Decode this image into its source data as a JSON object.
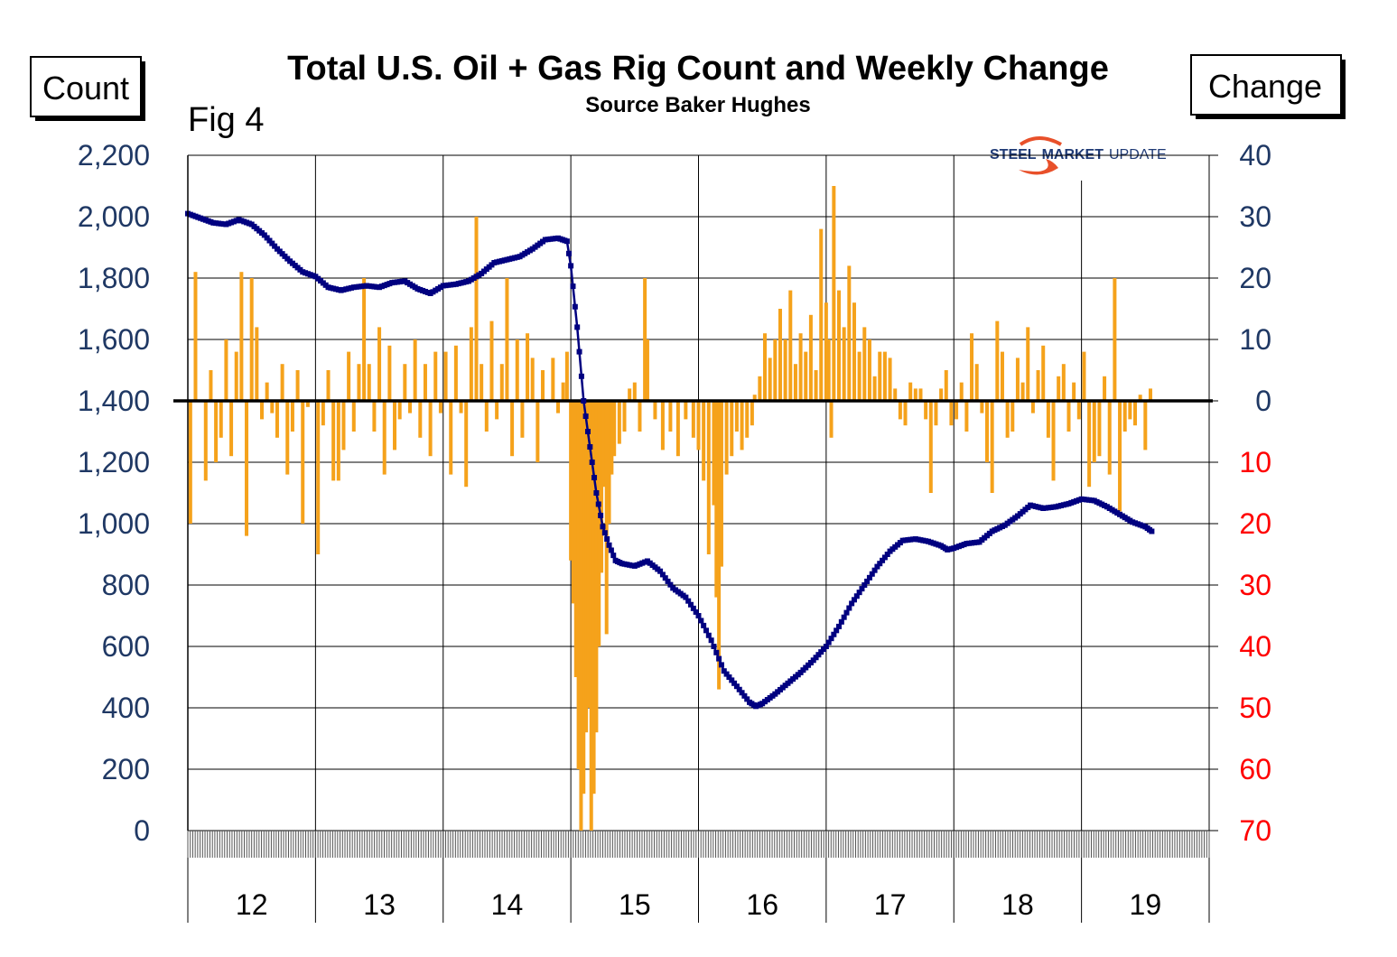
{
  "title": "Total U.S. Oil + Gas Rig Count and Weekly Change",
  "subtitle": "Source Baker Hughes",
  "figure_label": "Fig 4",
  "left_axis_box": "Count",
  "right_axis_box": "Change",
  "logo": {
    "word1": "STEEL",
    "word2": "MARKET",
    "word3": "UPDATE"
  },
  "colors": {
    "count_line": "#000080",
    "change_bars": "#f5a21b",
    "left_ticks": "#1f3864",
    "right_ticks_positive": "#1f3864",
    "right_ticks_negative": "#ff0000",
    "zero_line": "#000000",
    "logo_swoosh": "#e8502a"
  },
  "chart_data": {
    "type": "line+bar",
    "x_tick_labels": [
      "12",
      "13",
      "14",
      "15",
      "16",
      "17",
      "18",
      "19"
    ],
    "left_axis": {
      "ylim": [
        0,
        2200
      ],
      "ticks": [
        0,
        200,
        400,
        600,
        800,
        1000,
        1200,
        1400,
        1600,
        1800,
        2000,
        2200
      ],
      "tick_labels": [
        "0",
        "200",
        "400",
        "600",
        "800",
        "1,000",
        "1,200",
        "1,400",
        "1,600",
        "1,800",
        "2,000",
        "2,200"
      ]
    },
    "right_axis": {
      "ylim": [
        -70,
        40
      ],
      "ticks": [
        -70,
        -60,
        -50,
        -40,
        -30,
        -20,
        -10,
        0,
        10,
        20,
        30,
        40
      ],
      "tick_labels": [
        "70",
        "60",
        "50",
        "40",
        "30",
        "20",
        "10",
        "0",
        "10",
        "20",
        "30",
        "40"
      ]
    },
    "grid": true,
    "series": [
      {
        "name": "",
        "kind": "line",
        "axis": "left",
        "points": [
          [
            2012.0,
            2010
          ],
          [
            2012.1,
            1995
          ],
          [
            2012.2,
            1980
          ],
          [
            2012.3,
            1975
          ],
          [
            2012.4,
            1990
          ],
          [
            2012.5,
            1975
          ],
          [
            2012.6,
            1940
          ],
          [
            2012.7,
            1895
          ],
          [
            2012.8,
            1855
          ],
          [
            2012.9,
            1820
          ],
          [
            2013.0,
            1805
          ],
          [
            2013.1,
            1770
          ],
          [
            2013.2,
            1760
          ],
          [
            2013.3,
            1770
          ],
          [
            2013.4,
            1775
          ],
          [
            2013.5,
            1770
          ],
          [
            2013.6,
            1785
          ],
          [
            2013.7,
            1790
          ],
          [
            2013.8,
            1765
          ],
          [
            2013.9,
            1750
          ],
          [
            2014.0,
            1775
          ],
          [
            2014.1,
            1780
          ],
          [
            2014.2,
            1790
          ],
          [
            2014.3,
            1815
          ],
          [
            2014.4,
            1850
          ],
          [
            2014.5,
            1860
          ],
          [
            2014.6,
            1870
          ],
          [
            2014.7,
            1895
          ],
          [
            2014.8,
            1925
          ],
          [
            2014.9,
            1930
          ],
          [
            2014.97,
            1920
          ],
          [
            2015.0,
            1840
          ],
          [
            2015.05,
            1640
          ],
          [
            2015.1,
            1400
          ],
          [
            2015.15,
            1250
          ],
          [
            2015.2,
            1100
          ],
          [
            2015.25,
            990
          ],
          [
            2015.3,
            930
          ],
          [
            2015.35,
            880
          ],
          [
            2015.4,
            870
          ],
          [
            2015.5,
            862
          ],
          [
            2015.6,
            878
          ],
          [
            2015.7,
            845
          ],
          [
            2015.8,
            790
          ],
          [
            2015.9,
            760
          ],
          [
            2016.0,
            700
          ],
          [
            2016.1,
            620
          ],
          [
            2016.2,
            520
          ],
          [
            2016.3,
            470
          ],
          [
            2016.4,
            418
          ],
          [
            2016.45,
            405
          ],
          [
            2016.5,
            414
          ],
          [
            2016.6,
            445
          ],
          [
            2016.7,
            480
          ],
          [
            2016.8,
            515
          ],
          [
            2016.9,
            555
          ],
          [
            2017.0,
            600
          ],
          [
            2017.1,
            665
          ],
          [
            2017.2,
            740
          ],
          [
            2017.3,
            800
          ],
          [
            2017.4,
            860
          ],
          [
            2017.5,
            910
          ],
          [
            2017.6,
            945
          ],
          [
            2017.7,
            950
          ],
          [
            2017.8,
            942
          ],
          [
            2017.9,
            928
          ],
          [
            2017.95,
            915
          ],
          [
            2018.0,
            920
          ],
          [
            2018.1,
            935
          ],
          [
            2018.2,
            940
          ],
          [
            2018.3,
            975
          ],
          [
            2018.4,
            995
          ],
          [
            2018.5,
            1025
          ],
          [
            2018.6,
            1060
          ],
          [
            2018.7,
            1050
          ],
          [
            2018.8,
            1055
          ],
          [
            2018.9,
            1065
          ],
          [
            2019.0,
            1080
          ],
          [
            2019.1,
            1075
          ],
          [
            2019.2,
            1055
          ],
          [
            2019.3,
            1030
          ],
          [
            2019.4,
            1005
          ],
          [
            2019.5,
            990
          ],
          [
            2019.55,
            975
          ]
        ]
      },
      {
        "name": "",
        "kind": "bar",
        "axis": "right",
        "points": [
          [
            2012.02,
            -20
          ],
          [
            2012.06,
            21
          ],
          [
            2012.1,
            0
          ],
          [
            2012.14,
            -13
          ],
          [
            2012.18,
            5
          ],
          [
            2012.22,
            -10
          ],
          [
            2012.26,
            -6
          ],
          [
            2012.3,
            10
          ],
          [
            2012.34,
            -9
          ],
          [
            2012.38,
            8
          ],
          [
            2012.42,
            21
          ],
          [
            2012.46,
            -22
          ],
          [
            2012.5,
            20
          ],
          [
            2012.54,
            12
          ],
          [
            2012.58,
            -3
          ],
          [
            2012.62,
            3
          ],
          [
            2012.66,
            -2
          ],
          [
            2012.7,
            -6
          ],
          [
            2012.74,
            6
          ],
          [
            2012.78,
            -12
          ],
          [
            2012.82,
            -5
          ],
          [
            2012.86,
            5
          ],
          [
            2012.9,
            -20
          ],
          [
            2012.94,
            -1
          ],
          [
            2012.98,
            0
          ],
          [
            2013.02,
            -25
          ],
          [
            2013.06,
            -4
          ],
          [
            2013.1,
            5
          ],
          [
            2013.14,
            -13
          ],
          [
            2013.18,
            -13
          ],
          [
            2013.22,
            -8
          ],
          [
            2013.26,
            8
          ],
          [
            2013.3,
            -5
          ],
          [
            2013.34,
            6
          ],
          [
            2013.38,
            20
          ],
          [
            2013.42,
            6
          ],
          [
            2013.46,
            -5
          ],
          [
            2013.5,
            12
          ],
          [
            2013.54,
            -12
          ],
          [
            2013.58,
            9
          ],
          [
            2013.62,
            -8
          ],
          [
            2013.66,
            -3
          ],
          [
            2013.7,
            6
          ],
          [
            2013.74,
            -2
          ],
          [
            2013.78,
            10
          ],
          [
            2013.82,
            -6
          ],
          [
            2013.86,
            6
          ],
          [
            2013.9,
            -9
          ],
          [
            2013.94,
            8
          ],
          [
            2013.98,
            -2
          ],
          [
            2014.02,
            8
          ],
          [
            2014.06,
            -12
          ],
          [
            2014.1,
            9
          ],
          [
            2014.14,
            -2
          ],
          [
            2014.18,
            -14
          ],
          [
            2014.22,
            12
          ],
          [
            2014.26,
            30
          ],
          [
            2014.3,
            6
          ],
          [
            2014.34,
            -5
          ],
          [
            2014.38,
            13
          ],
          [
            2014.42,
            -3
          ],
          [
            2014.46,
            6
          ],
          [
            2014.5,
            20
          ],
          [
            2014.54,
            -9
          ],
          [
            2014.58,
            10
          ],
          [
            2014.62,
            -6
          ],
          [
            2014.66,
            11
          ],
          [
            2014.7,
            7
          ],
          [
            2014.74,
            -10
          ],
          [
            2014.78,
            5
          ],
          [
            2014.82,
            0
          ],
          [
            2014.86,
            7
          ],
          [
            2014.9,
            -2
          ],
          [
            2014.94,
            3
          ],
          [
            2014.97,
            8
          ],
          [
            2015.0,
            -26
          ],
          [
            2015.02,
            -33
          ],
          [
            2015.04,
            -45
          ],
          [
            2015.06,
            -60
          ],
          [
            2015.08,
            -70
          ],
          [
            2015.1,
            -64
          ],
          [
            2015.12,
            -54
          ],
          [
            2015.14,
            -50
          ],
          [
            2015.16,
            -70
          ],
          [
            2015.18,
            -64
          ],
          [
            2015.2,
            -54
          ],
          [
            2015.22,
            -40
          ],
          [
            2015.24,
            -28
          ],
          [
            2015.26,
            -14
          ],
          [
            2015.28,
            -38
          ],
          [
            2015.3,
            -20
          ],
          [
            2015.32,
            -12
          ],
          [
            2015.34,
            -9
          ],
          [
            2015.38,
            -7
          ],
          [
            2015.42,
            -5
          ],
          [
            2015.46,
            2
          ],
          [
            2015.5,
            3
          ],
          [
            2015.54,
            -5
          ],
          [
            2015.58,
            20
          ],
          [
            2015.6,
            10
          ],
          [
            2015.66,
            -3
          ],
          [
            2015.72,
            -8
          ],
          [
            2015.78,
            -5
          ],
          [
            2015.84,
            -9
          ],
          [
            2015.9,
            -3
          ],
          [
            2015.96,
            -6
          ],
          [
            2016.0,
            -8
          ],
          [
            2016.04,
            -13
          ],
          [
            2016.08,
            -25
          ],
          [
            2016.12,
            -17
          ],
          [
            2016.14,
            -32
          ],
          [
            2016.16,
            -47
          ],
          [
            2016.18,
            -27
          ],
          [
            2016.22,
            -12
          ],
          [
            2016.26,
            -9
          ],
          [
            2016.3,
            -5
          ],
          [
            2016.34,
            -8
          ],
          [
            2016.38,
            -6
          ],
          [
            2016.42,
            -4
          ],
          [
            2016.44,
            1
          ],
          [
            2016.48,
            4
          ],
          [
            2016.52,
            11
          ],
          [
            2016.56,
            7
          ],
          [
            2016.6,
            10
          ],
          [
            2016.64,
            15
          ],
          [
            2016.68,
            10
          ],
          [
            2016.72,
            18
          ],
          [
            2016.76,
            6
          ],
          [
            2016.8,
            11
          ],
          [
            2016.84,
            8
          ],
          [
            2016.88,
            14
          ],
          [
            2016.92,
            5
          ],
          [
            2016.96,
            28
          ],
          [
            2017.0,
            16
          ],
          [
            2017.02,
            10
          ],
          [
            2017.04,
            -6
          ],
          [
            2017.06,
            35
          ],
          [
            2017.1,
            18
          ],
          [
            2017.14,
            12
          ],
          [
            2017.18,
            22
          ],
          [
            2017.22,
            16
          ],
          [
            2017.26,
            8
          ],
          [
            2017.3,
            12
          ],
          [
            2017.34,
            10
          ],
          [
            2017.38,
            4
          ],
          [
            2017.42,
            8
          ],
          [
            2017.46,
            8
          ],
          [
            2017.5,
            7
          ],
          [
            2017.54,
            2
          ],
          [
            2017.58,
            -3
          ],
          [
            2017.62,
            -4
          ],
          [
            2017.66,
            3
          ],
          [
            2017.7,
            2
          ],
          [
            2017.74,
            2
          ],
          [
            2017.78,
            -3
          ],
          [
            2017.82,
            -15
          ],
          [
            2017.86,
            -4
          ],
          [
            2017.9,
            2
          ],
          [
            2017.94,
            5
          ],
          [
            2017.98,
            -4
          ],
          [
            2018.02,
            -3
          ],
          [
            2018.06,
            3
          ],
          [
            2018.1,
            -5
          ],
          [
            2018.14,
            11
          ],
          [
            2018.18,
            6
          ],
          [
            2018.22,
            -2
          ],
          [
            2018.26,
            -10
          ],
          [
            2018.3,
            -15
          ],
          [
            2018.34,
            13
          ],
          [
            2018.38,
            8
          ],
          [
            2018.42,
            -6
          ],
          [
            2018.46,
            -5
          ],
          [
            2018.5,
            7
          ],
          [
            2018.54,
            3
          ],
          [
            2018.58,
            12
          ],
          [
            2018.62,
            -2
          ],
          [
            2018.66,
            5
          ],
          [
            2018.7,
            9
          ],
          [
            2018.74,
            -6
          ],
          [
            2018.78,
            -13
          ],
          [
            2018.82,
            4
          ],
          [
            2018.86,
            6
          ],
          [
            2018.9,
            -5
          ],
          [
            2018.94,
            3
          ],
          [
            2018.98,
            -3
          ],
          [
            2019.02,
            8
          ],
          [
            2019.06,
            -14
          ],
          [
            2019.1,
            -10
          ],
          [
            2019.14,
            -9
          ],
          [
            2019.18,
            4
          ],
          [
            2019.22,
            -12
          ],
          [
            2019.26,
            20
          ],
          [
            2019.3,
            -18
          ],
          [
            2019.34,
            -5
          ],
          [
            2019.38,
            -3
          ],
          [
            2019.42,
            -4
          ],
          [
            2019.46,
            1
          ],
          [
            2019.5,
            -8
          ],
          [
            2019.54,
            2
          ]
        ]
      }
    ]
  }
}
